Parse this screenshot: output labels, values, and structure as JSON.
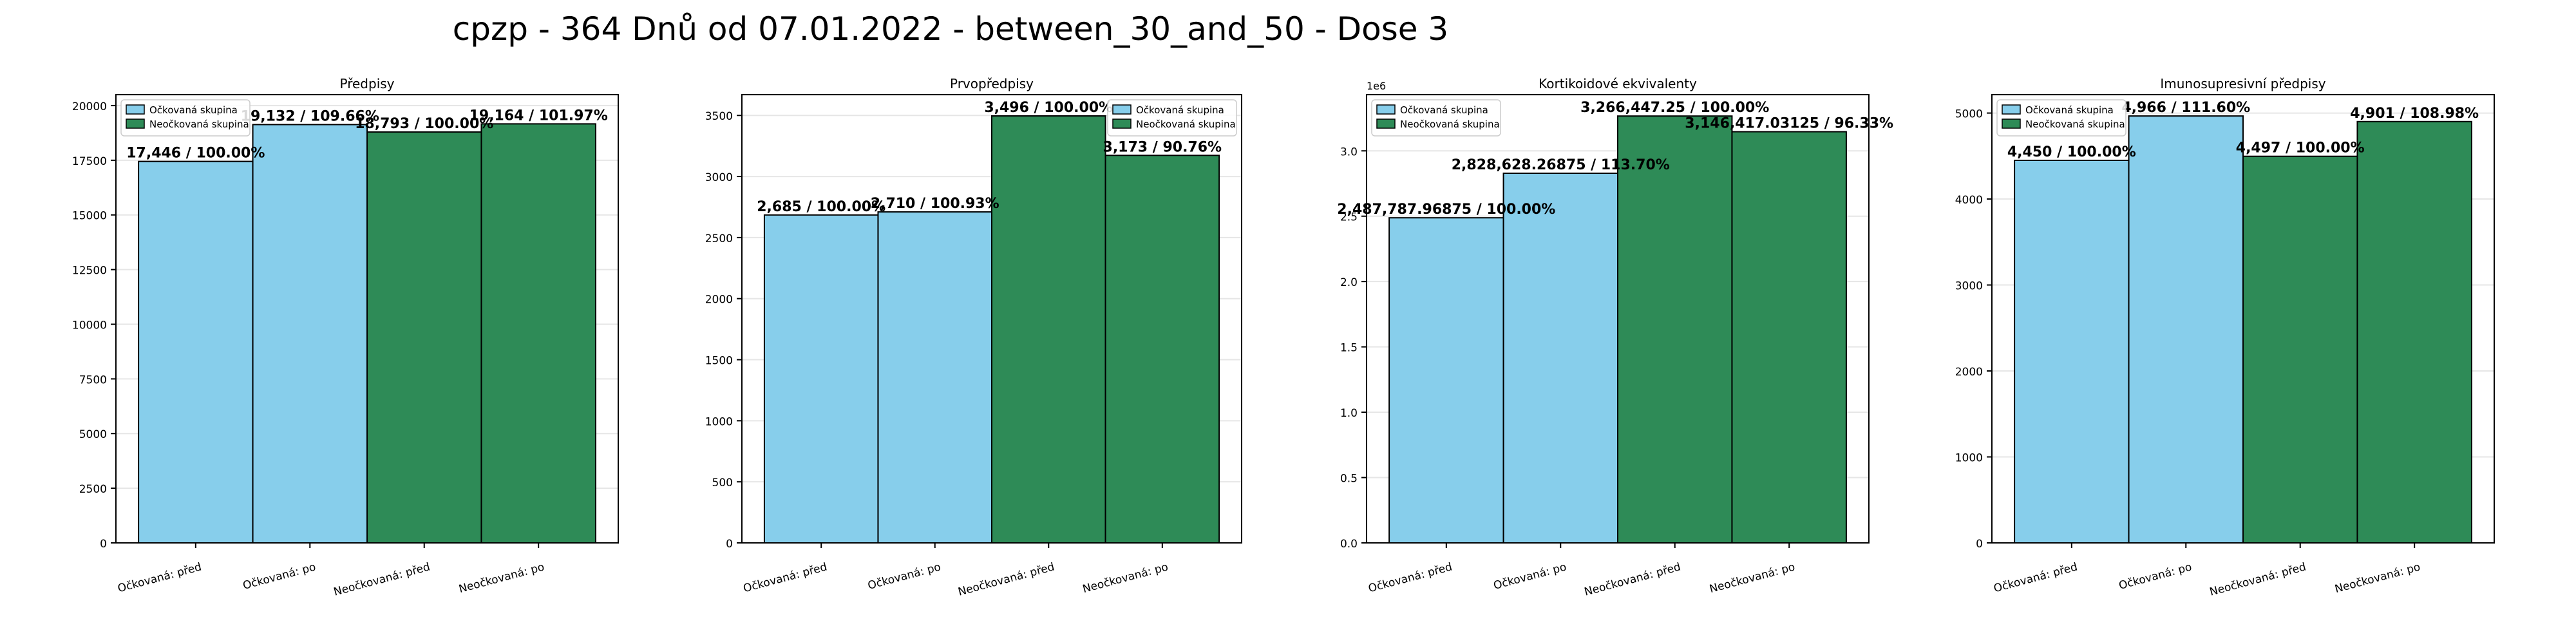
{
  "figure": {
    "title": "cpzp - 364 Dnů od 07.01.2022 - between_30_and_50 - Dose 3"
  },
  "colors": {
    "vaccinated": "#87CEEB",
    "unvaccinated": "#2E8B57",
    "edge": "#000000",
    "grid": "#e6e6e6"
  },
  "legend_labels": [
    "Očkovaná skupina",
    "Neočkovaná skupina"
  ],
  "chart_data": [
    {
      "type": "bar",
      "title": "Předpisy",
      "categories": [
        "Očkovaná: před",
        "Očkovaná: po",
        "Neočkovaná: před",
        "Neočkovaná: po"
      ],
      "values": [
        17446,
        19132,
        18793,
        19164
      ],
      "data_labels": [
        "17,446 / 100.00%",
        "19,132 / 109.66%",
        "18,793 / 100.00%",
        "19,164 / 101.97%"
      ],
      "ylim": [
        0,
        20500
      ],
      "yticks": [
        0,
        2500,
        5000,
        7500,
        10000,
        12500,
        15000,
        17500,
        20000
      ],
      "ytick_labels": [
        "0",
        "2500",
        "5000",
        "7500",
        "10000",
        "12500",
        "15000",
        "17500",
        "20000"
      ],
      "y_scale_label": "",
      "legend": "top-left",
      "grid": true
    },
    {
      "type": "bar",
      "title": "Prvopředpisy",
      "categories": [
        "Očkovaná: před",
        "Očkovaná: po",
        "Neočkovaná: před",
        "Neočkovaná: po"
      ],
      "values": [
        2685,
        2710,
        3496,
        3173
      ],
      "data_labels": [
        "2,685 / 100.00%",
        "2,710 / 100.93%",
        "3,496 / 100.00%",
        "3,173 / 90.76%"
      ],
      "ylim": [
        0,
        3670
      ],
      "yticks": [
        0,
        500,
        1000,
        1500,
        2000,
        2500,
        3000,
        3500
      ],
      "ytick_labels": [
        "0",
        "500",
        "1000",
        "1500",
        "2000",
        "2500",
        "3000",
        "3500"
      ],
      "y_scale_label": "",
      "legend": "top-right",
      "grid": true
    },
    {
      "type": "bar",
      "title": "Kortikoidové ekvivalenty",
      "categories": [
        "Očkovaná: před",
        "Očkovaná: po",
        "Neočkovaná: před",
        "Neočkovaná: po"
      ],
      "values": [
        2487787.96875,
        2828628.26875,
        3266447.25,
        3146417.03125
      ],
      "data_labels": [
        "2,487,787.96875 / 100.00%",
        "2,828,628.26875 / 113.70%",
        "3,266,447.25 / 100.00%",
        "3,146,417.03125 / 96.33%"
      ],
      "ylim": [
        0,
        3430000
      ],
      "yticks": [
        0,
        500000,
        1000000,
        1500000,
        2000000,
        2500000,
        3000000
      ],
      "ytick_labels": [
        "0.0",
        "0.5",
        "1.0",
        "1.5",
        "2.0",
        "2.5",
        "3.0"
      ],
      "y_scale_label": "1e6",
      "legend": "top-left",
      "grid": true
    },
    {
      "type": "bar",
      "title": "Imunosupresivní předpisy",
      "categories": [
        "Očkovaná: před",
        "Očkovaná: po",
        "Neočkovaná: před",
        "Neočkovaná: po"
      ],
      "values": [
        4450,
        4966,
        4497,
        4901
      ],
      "data_labels": [
        "4,450 / 100.00%",
        "4,966 / 111.60%",
        "4,497 / 100.00%",
        "4,901 / 108.98%"
      ],
      "ylim": [
        0,
        5214
      ],
      "yticks": [
        0,
        1000,
        2000,
        3000,
        4000,
        5000
      ],
      "ytick_labels": [
        "0",
        "1000",
        "2000",
        "3000",
        "4000",
        "5000"
      ],
      "y_scale_label": "",
      "legend": "top-left",
      "grid": true
    }
  ]
}
